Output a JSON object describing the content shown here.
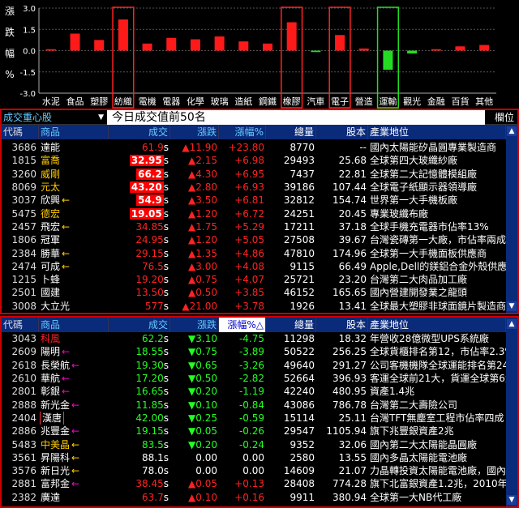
{
  "chart_data": {
    "type": "bar",
    "ylabel": "漲跌幅%",
    "ylabel_chars": [
      "漲",
      "跌",
      "幅",
      "%"
    ],
    "ylim": [
      -3.0,
      3.0
    ],
    "yticks": [
      "3.0",
      "1.5",
      "0.0",
      "-1.5",
      "-3.0"
    ],
    "categories": [
      "水泥",
      "食品",
      "塑膠",
      "紡織",
      "電機",
      "電器",
      "化學",
      "玻璃",
      "造紙",
      "鋼鐵",
      "橡膠",
      "汽車",
      "電子",
      "營造",
      "運輸",
      "觀光",
      "金融",
      "百貨",
      "其他"
    ],
    "values": [
      0.1,
      1.2,
      0.75,
      2.2,
      0.5,
      0.9,
      0.8,
      1.0,
      0.65,
      0.5,
      2.0,
      -0.1,
      1.1,
      0.15,
      -1.35,
      -0.2,
      0.1,
      0.3,
      0.4
    ],
    "highlight_red": [
      "紡織",
      "橡膠",
      "電子"
    ],
    "highlight_green": [
      "運輸"
    ],
    "colors": {
      "up": "#ff1a1a",
      "down": "#22dd22"
    }
  },
  "panel1": {
    "left_label": "成交重心股",
    "left_arrow": "▼",
    "title": "今日成交值前50名",
    "right_label": "欄位",
    "headers": [
      "代碼",
      "商品",
      "成交",
      "漲跌",
      "漲幅%",
      "總量",
      "股本",
      "產業地位"
    ],
    "rows": [
      {
        "code": "3686",
        "name": "達能",
        "price": "61.9",
        "s": "s",
        "chg": "▲11.90",
        "pct": "+23.80",
        "vol": "8770",
        "shr": "--",
        "pos": "國內太陽能矽晶圓專業製造商",
        "pc": "red",
        "nc": "white",
        "hl": false,
        "arrow": ""
      },
      {
        "code": "1815",
        "name": "富喬",
        "price": "32.95",
        "s": "s",
        "chg": "▲2.15",
        "pct": "+6.98",
        "vol": "29493",
        "shr": "25.68",
        "pos": "全球第四大玻纖紗廠",
        "pc": "white",
        "nc": "yellow",
        "hl": true,
        "arrow": ""
      },
      {
        "code": "3260",
        "name": "威剛",
        "price": "66.2",
        "s": "s",
        "chg": "▲4.30",
        "pct": "+6.95",
        "vol": "7437",
        "shr": "22.81",
        "pos": "全球第二大記憶體模組廠",
        "pc": "white",
        "nc": "yellow",
        "hl": true,
        "arrow": ""
      },
      {
        "code": "8069",
        "name": "元太",
        "price": "43.20",
        "s": "s",
        "chg": "▲2.80",
        "pct": "+6.93",
        "vol": "39186",
        "shr": "107.44",
        "pos": "全球電子紙顯示器領導廠",
        "pc": "white",
        "nc": "yellow",
        "hl": true,
        "arrow": ""
      },
      {
        "code": "3037",
        "name": "欣興",
        "price": "54.9",
        "s": "s",
        "chg": "▲3.50",
        "pct": "+6.81",
        "vol": "32812",
        "shr": "154.74",
        "pos": "世界第一大手機板廠",
        "pc": "white",
        "nc": "white",
        "hl": true,
        "arrow": "←"
      },
      {
        "code": "5475",
        "name": "德宏",
        "price": "19.05",
        "s": "s",
        "chg": "▲1.20",
        "pct": "+6.72",
        "vol": "24251",
        "shr": "20.45",
        "pos": "專業玻纖布廠",
        "pc": "white",
        "nc": "yellow",
        "hl": true,
        "arrow": ""
      },
      {
        "code": "2457",
        "name": "飛宏",
        "price": "34.85",
        "s": "s",
        "chg": "▲1.75",
        "pct": "+5.29",
        "vol": "17211",
        "shr": "37.18",
        "pos": "全球手機充電器市佔率13%",
        "pc": "red",
        "nc": "white",
        "hl": false,
        "arrow": "←"
      },
      {
        "code": "1806",
        "name": "冠軍",
        "price": "24.95",
        "s": "s",
        "chg": "▲1.20",
        "pct": "+5.05",
        "vol": "27508",
        "shr": "39.67",
        "pos": "台灣瓷磚第一大廠，市佔率兩成",
        "pc": "red",
        "nc": "white",
        "hl": false,
        "arrow": ""
      },
      {
        "code": "2384",
        "name": "勝華",
        "price": "29.15",
        "s": "s",
        "chg": "▲1.35",
        "pct": "+4.86",
        "vol": "47810",
        "shr": "174.96",
        "pos": "全球第一大手機面板供應商",
        "pc": "red",
        "nc": "white",
        "hl": false,
        "arrow": "←"
      },
      {
        "code": "2474",
        "name": "可成",
        "price": "76.5",
        "s": "s",
        "chg": "▲3.00",
        "pct": "+4.08",
        "vol": "9115",
        "shr": "66.49",
        "pos": "Apple,Dell的鎂鋁合金外殼供應商",
        "pc": "red",
        "nc": "white",
        "hl": false,
        "arrow": "←"
      },
      {
        "code": "1215",
        "name": "卜蜂",
        "price": "19.20",
        "s": "s",
        "chg": "▲0.75",
        "pct": "+4.07",
        "vol": "25721",
        "shr": "23.20",
        "pos": "台灣第二大肉品加工廠",
        "pc": "red",
        "nc": "white",
        "hl": false,
        "arrow": ""
      },
      {
        "code": "2501",
        "name": "國建",
        "price": "13.50",
        "s": "s",
        "chg": "▲0.50",
        "pct": "+3.85",
        "vol": "46152",
        "shr": "165.65",
        "pos": "國內營建開發業之龍頭",
        "pc": "red",
        "nc": "white",
        "hl": false,
        "arrow": ""
      },
      {
        "code": "3008",
        "name": "大立光",
        "price": "577",
        "s": "s",
        "chg": "▲21.00",
        "pct": "+3.78",
        "vol": "1926",
        "shr": "13.41",
        "pos": "全球最大塑膠非球面鏡片製造商",
        "pc": "red",
        "nc": "white",
        "hl": false,
        "arrow": ""
      }
    ]
  },
  "panel2": {
    "headers": [
      "代碼",
      "商品",
      "成交",
      "漲跌",
      "漲幅%",
      "總量",
      "股本",
      "產業地位"
    ],
    "sort_mark": "△",
    "rows": [
      {
        "code": "3043",
        "name": "科風",
        "price": "62.2",
        "s": "s",
        "chg": "▼3.10",
        "pct": "-4.75",
        "vol": "11298",
        "shr": "18.32",
        "pos": "年營收28億微型UPS系統廠",
        "pc": "green",
        "nc": "red",
        "arrow": "",
        "ac": "",
        "box": false
      },
      {
        "code": "2609",
        "name": "陽明",
        "price": "18.55",
        "s": "s",
        "chg": "▼0.75",
        "pct": "-3.89",
        "vol": "50522",
        "shr": "256.25",
        "pos": "全球貨櫃排名第12，市佔率2.3%",
        "pc": "green",
        "nc": "white",
        "arrow": "←",
        "ac": "#f0c",
        "box": false
      },
      {
        "code": "2618",
        "name": "長榮航",
        "price": "19.30",
        "s": "s",
        "chg": "▼0.65",
        "pct": "-3.26",
        "vol": "49640",
        "shr": "291.27",
        "pos": "公司客機機隊全球運能排名第24",
        "pc": "green",
        "nc": "white",
        "arrow": "←",
        "ac": "#f0c",
        "box": false
      },
      {
        "code": "2610",
        "name": "華航",
        "price": "17.20",
        "s": "s",
        "chg": "▼0.50",
        "pct": "-2.82",
        "vol": "52664",
        "shr": "396.93",
        "pos": "客運全球前21大，貨運全球第6大",
        "pc": "green",
        "nc": "white",
        "arrow": "←",
        "ac": "#f0c",
        "box": false
      },
      {
        "code": "2801",
        "name": "彰銀",
        "price": "16.65",
        "s": "s",
        "chg": "▼0.20",
        "pct": "-1.19",
        "vol": "42240",
        "shr": "480.95",
        "pos": "資產1.4兆",
        "pc": "green",
        "nc": "white",
        "arrow": "←",
        "ac": "#f0c",
        "box": false
      },
      {
        "code": "2888",
        "name": "新光金",
        "price": "11.85",
        "s": "s",
        "chg": "▼0.10",
        "pct": "-0.84",
        "vol": "43086",
        "shr": "786.78",
        "pos": "台灣第二大壽險公司",
        "pc": "green",
        "nc": "white",
        "arrow": "←",
        "ac": "#f0c",
        "box": false
      },
      {
        "code": "2404",
        "name": "漢唐",
        "price": "42.00",
        "s": "s",
        "chg": "▼0.25",
        "pct": "-0.59",
        "vol": "15114",
        "shr": "25.11",
        "pos": "台灣TFT無塵室工程市佔率四成",
        "pc": "green",
        "nc": "white",
        "arrow": "",
        "ac": "",
        "box": true
      },
      {
        "code": "2886",
        "name": "兆豐金",
        "price": "19.15",
        "s": "s",
        "chg": "▼0.05",
        "pct": "-0.26",
        "vol": "29547",
        "shr": "1105.94",
        "pos": "旗下兆豐銀資產2兆",
        "pc": "green",
        "nc": "white",
        "arrow": "←",
        "ac": "#f0c",
        "box": false
      },
      {
        "code": "5483",
        "name": "中美晶",
        "price": "83.5",
        "s": "s",
        "chg": "▼0.20",
        "pct": "-0.24",
        "vol": "9352",
        "shr": "32.06",
        "pos": "國內第二大太陽能晶圓廠",
        "pc": "green",
        "nc": "yellow",
        "arrow": "←",
        "ac": "#fc0",
        "box": false
      },
      {
        "code": "3561",
        "name": "昇陽科",
        "price": "88.1",
        "s": "s",
        "chg": "0.00",
        "pct": "0.00",
        "vol": "2580",
        "shr": "13.55",
        "pos": "國內多晶太陽能電池廠",
        "pc": "white",
        "nc": "white",
        "arrow": "←",
        "ac": "#fc0",
        "box": false
      },
      {
        "code": "3576",
        "name": "新日光",
        "price": "78.0",
        "s": "s",
        "chg": "0.00",
        "pct": "0.00",
        "vol": "14609",
        "shr": "21.07",
        "pos": "力晶轉投資太陽能電池廠，國內第",
        "pc": "white",
        "nc": "white",
        "arrow": "←",
        "ac": "#fc0",
        "box": false
      },
      {
        "code": "2881",
        "name": "富邦金",
        "price": "38.45",
        "s": "s",
        "chg": "▲0.05",
        "pct": "+0.13",
        "vol": "28408",
        "shr": "774.28",
        "pos": "旗下北富銀資產1.2兆，2010年Q1",
        "pc": "red",
        "nc": "white",
        "arrow": "←",
        "ac": "#f0c",
        "box": false
      },
      {
        "code": "2382",
        "name": "廣達",
        "price": "63.7",
        "s": "s",
        "chg": "▲0.10",
        "pct": "+0.16",
        "vol": "9911",
        "shr": "380.94",
        "pos": "全球第一大NB代工廠",
        "pc": "red",
        "nc": "white",
        "arrow": "",
        "ac": "",
        "box": false
      }
    ]
  }
}
